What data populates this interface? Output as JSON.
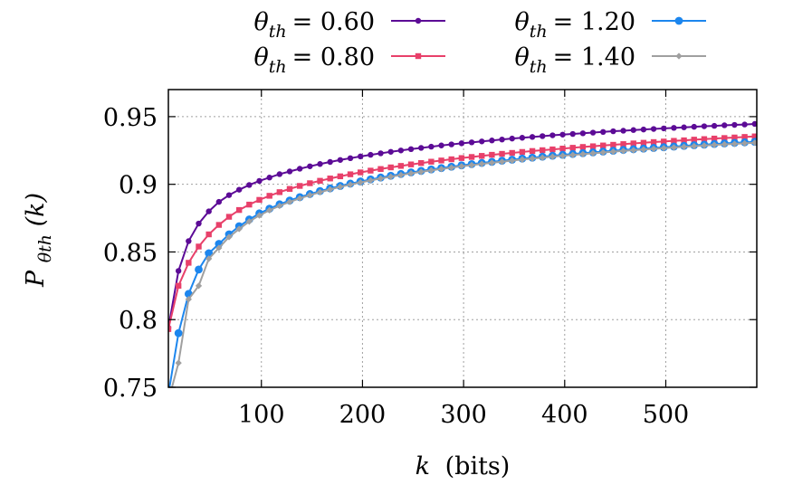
{
  "chart_data": {
    "type": "line",
    "xlabel": "k (bits)",
    "xlabel_var": "k",
    "xlabel_unit": "(bits)",
    "ylabel_main": "P",
    "ylabel_sub": "θth",
    "ylabel_arg": "(k)",
    "xlim": [
      8,
      590
    ],
    "ylim": [
      0.75,
      0.97
    ],
    "xticks": [
      100,
      200,
      300,
      400,
      500
    ],
    "xtick_labels": [
      "100",
      "200",
      "300",
      "400",
      "500"
    ],
    "yticks": [
      0.75,
      0.8,
      0.85,
      0.9,
      0.95
    ],
    "ytick_labels": [
      "0.75",
      "0.8",
      "0.85",
      "0.9",
      "0.95"
    ],
    "grid": true,
    "legend_position": "top",
    "x_start": 8,
    "x_step": 10,
    "series": [
      {
        "name": "θth = 0.60",
        "name_var": "θ",
        "name_sub": "th",
        "name_value": "= 0.60",
        "color": "#5c0b96",
        "marker": "circle",
        "values": [
          0.794,
          0.836,
          0.858,
          0.871,
          0.88,
          0.887,
          0.892,
          0.896,
          0.8995,
          0.9025,
          0.905,
          0.9075,
          0.9095,
          0.9115,
          0.9133,
          0.915,
          0.9165,
          0.918,
          0.9193,
          0.9206,
          0.9218,
          0.9229,
          0.924,
          0.925,
          0.926,
          0.9269,
          0.9278,
          0.9287,
          0.9295,
          0.9303,
          0.931,
          0.9317,
          0.9324,
          0.9331,
          0.9338,
          0.9344,
          0.935,
          0.9356,
          0.9362,
          0.9367,
          0.9372,
          0.9377,
          0.9382,
          0.9387,
          0.9392,
          0.9396,
          0.9401,
          0.9405,
          0.9409,
          0.9413,
          0.9417,
          0.9421,
          0.9425,
          0.9429,
          0.9432,
          0.9436,
          0.9439,
          0.9442,
          0.9446
        ]
      },
      {
        "name": "θth = 0.80",
        "name_var": "θ",
        "name_sub": "th",
        "name_value": "= 0.80",
        "color": "#e8406a",
        "marker": "square",
        "values": [
          0.793,
          0.825,
          0.842,
          0.854,
          0.863,
          0.87,
          0.876,
          0.881,
          0.885,
          0.8885,
          0.8915,
          0.8942,
          0.8966,
          0.8988,
          0.9008,
          0.9026,
          0.9043,
          0.9059,
          0.9074,
          0.9088,
          0.9101,
          0.9113,
          0.9125,
          0.9136,
          0.9147,
          0.9157,
          0.9167,
          0.9176,
          0.9185,
          0.9194,
          0.9202,
          0.921,
          0.9218,
          0.9225,
          0.9232,
          0.9239,
          0.9246,
          0.9252,
          0.9258,
          0.9264,
          0.927,
          0.9276,
          0.9281,
          0.9287,
          0.9292,
          0.9297,
          0.9302,
          0.9307,
          0.9312,
          0.9316,
          0.9321,
          0.9325,
          0.933,
          0.9334,
          0.9338,
          0.9342,
          0.9346,
          0.935,
          0.9354
        ]
      },
      {
        "name": "θth = 1.20",
        "name_var": "θ",
        "name_sub": "th",
        "name_value": "= 1.20",
        "color": "#1c86ee",
        "marker": "circle",
        "values": [
          0.745,
          0.79,
          0.819,
          0.837,
          0.849,
          0.856,
          0.863,
          0.869,
          0.874,
          0.8785,
          0.882,
          0.8852,
          0.888,
          0.8905,
          0.8928,
          0.895,
          0.897,
          0.8988,
          0.9005,
          0.9021,
          0.9036,
          0.905,
          0.9063,
          0.9076,
          0.9088,
          0.9099,
          0.911,
          0.912,
          0.913,
          0.914,
          0.9149,
          0.9158,
          0.9166,
          0.9174,
          0.9182,
          0.919,
          0.9197,
          0.9204,
          0.9211,
          0.9218,
          0.9224,
          0.923,
          0.9236,
          0.9242,
          0.9248,
          0.9254,
          0.9259,
          0.9264,
          0.9269,
          0.9274,
          0.9279,
          0.9284,
          0.9289,
          0.9293,
          0.9298,
          0.9302,
          0.9306,
          0.931,
          0.9314
        ]
      },
      {
        "name": "θth = 1.40",
        "name_var": "θ",
        "name_sub": "th",
        "name_value": "= 1.40",
        "color": "#a0a0a0",
        "marker": "diamond",
        "values": [
          0.74,
          0.768,
          0.815,
          0.825,
          0.845,
          0.853,
          0.861,
          0.867,
          0.8725,
          0.877,
          0.8808,
          0.8841,
          0.887,
          0.8896,
          0.892,
          0.8942,
          0.8962,
          0.8981,
          0.8998,
          0.9014,
          0.9029,
          0.9043,
          0.9056,
          0.9069,
          0.9081,
          0.9092,
          0.9103,
          0.9113,
          0.9123,
          0.9133,
          0.9142,
          0.9151,
          0.9159,
          0.9167,
          0.9175,
          0.9183,
          0.919,
          0.9197,
          0.9204,
          0.9211,
          0.9217,
          0.9223,
          0.9229,
          0.9235,
          0.9241,
          0.9247,
          0.9252,
          0.9257,
          0.9262,
          0.9267,
          0.9272,
          0.9277,
          0.9282,
          0.9286,
          0.9291,
          0.9295,
          0.9299,
          0.9303,
          0.9307
        ]
      }
    ]
  }
}
